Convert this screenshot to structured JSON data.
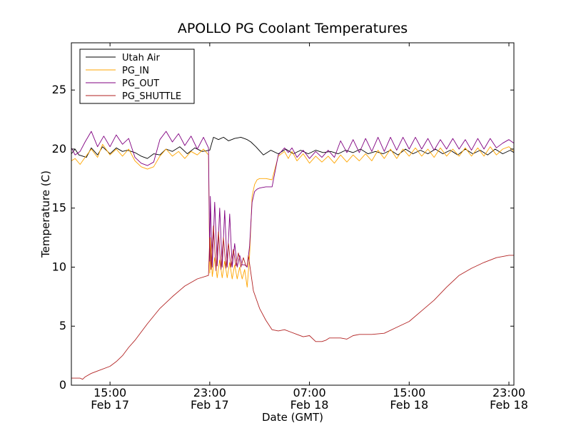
{
  "chart_data": {
    "type": "line",
    "title": "APOLLO PG Coolant Temperatures",
    "xlabel": "Date (GMT)",
    "ylabel": "Temperature (C)",
    "x_unit": "hours since 2013-02-17 00:00 GMT",
    "xlim": [
      11.9,
      47.4
    ],
    "ylim": [
      0,
      29
    ],
    "yticks": [
      0,
      5,
      10,
      15,
      20,
      25
    ],
    "xticks": [
      {
        "x": 15,
        "label_time": "15:00",
        "label_date": "Feb 17"
      },
      {
        "x": 23,
        "label_time": "23:00",
        "label_date": "Feb 17"
      },
      {
        "x": 31,
        "label_time": "07:00",
        "label_date": "Feb 18"
      },
      {
        "x": 39,
        "label_time": "15:00",
        "label_date": "Feb 18"
      },
      {
        "x": 47,
        "label_time": "23:00",
        "label_date": "Feb 18"
      }
    ],
    "legend_position": "top-left",
    "series": [
      {
        "name": "Utah Air",
        "color": "#000000",
        "x": [
          11.9,
          12.2,
          12.5,
          13.1,
          13.5,
          14.0,
          14.4,
          15.0,
          15.5,
          16.0,
          16.4,
          17.0,
          17.5,
          18.0,
          18.5,
          19.0,
          19.5,
          20.0,
          20.6,
          21.2,
          21.8,
          22.4,
          23.0,
          23.3,
          23.7,
          24.1,
          24.5,
          25.0,
          25.5,
          26.0,
          26.3,
          26.7,
          27.3,
          27.9,
          28.5,
          29.1,
          29.7,
          30.3,
          30.9,
          31.5,
          32.1,
          32.7,
          33.3,
          33.9,
          34.5,
          35.1,
          35.7,
          36.3,
          36.9,
          37.5,
          38.1,
          38.7,
          39.3,
          39.9,
          40.5,
          41.1,
          41.7,
          42.3,
          42.9,
          43.5,
          44.1,
          44.7,
          45.3,
          45.9,
          46.5,
          47.1,
          47.4
        ],
        "y": [
          19.6,
          20.0,
          19.5,
          19.3,
          20.1,
          19.5,
          20.2,
          19.6,
          20.1,
          19.8,
          19.9,
          19.7,
          19.4,
          19.2,
          19.6,
          19.5,
          20.0,
          19.8,
          20.2,
          19.6,
          20.1,
          19.8,
          19.9,
          21.0,
          20.8,
          21.0,
          20.7,
          20.9,
          21.0,
          20.8,
          20.6,
          20.2,
          19.5,
          19.9,
          19.6,
          20.0,
          19.6,
          19.9,
          19.6,
          19.9,
          19.7,
          19.8,
          19.6,
          19.9,
          19.7,
          20.0,
          19.6,
          19.8,
          19.6,
          19.9,
          19.5,
          20.0,
          19.6,
          19.9,
          19.6,
          20.0,
          19.6,
          19.9,
          19.5,
          20.0,
          19.6,
          19.9,
          19.5,
          20.0,
          19.6,
          19.9,
          19.7
        ]
      },
      {
        "name": "PG_IN",
        "color": "#ffa500",
        "x": [
          11.9,
          12.2,
          12.6,
          13.0,
          13.5,
          14.0,
          14.4,
          15.0,
          15.5,
          16.0,
          16.5,
          17.0,
          17.5,
          18.0,
          18.5,
          19.0,
          19.5,
          20.0,
          20.5,
          21.0,
          21.5,
          22.0,
          22.5,
          22.9,
          23.0,
          23.05,
          23.2,
          23.4,
          23.6,
          23.8,
          24.0,
          24.2,
          24.4,
          24.6,
          24.8,
          25.0,
          25.2,
          25.4,
          25.6,
          25.8,
          26.0,
          26.2,
          26.4,
          26.6,
          26.8,
          27.0,
          27.5,
          28.0,
          28.5,
          29.0,
          29.3,
          29.6,
          30.0,
          30.5,
          31.0,
          31.5,
          32.0,
          32.5,
          33.0,
          33.5,
          34.0,
          34.5,
          35.0,
          35.5,
          36.0,
          36.5,
          37.0,
          37.5,
          38.0,
          38.5,
          39.0,
          39.5,
          40.0,
          40.5,
          41.0,
          41.5,
          42.0,
          42.5,
          43.0,
          43.5,
          44.0,
          44.5,
          45.0,
          45.5,
          46.0,
          46.5,
          47.0,
          47.4
        ],
        "y": [
          19.0,
          19.2,
          18.7,
          19.3,
          20.0,
          19.3,
          20.4,
          19.5,
          20.0,
          19.4,
          20.0,
          19.0,
          18.5,
          18.3,
          18.5,
          19.4,
          20.0,
          19.4,
          19.8,
          19.2,
          19.8,
          19.5,
          20.0,
          19.5,
          9.5,
          12.5,
          9.2,
          10.8,
          9.1,
          10.6,
          9.1,
          10.5,
          9.1,
          10.4,
          9.0,
          10.2,
          9.0,
          10.0,
          9.0,
          9.8,
          8.3,
          11.0,
          16.0,
          17.0,
          17.4,
          17.5,
          17.5,
          17.4,
          19.4,
          19.8,
          19.2,
          19.8,
          19.0,
          19.6,
          18.8,
          19.4,
          18.9,
          19.4,
          18.8,
          19.5,
          18.9,
          19.5,
          19.0,
          19.6,
          19.0,
          19.9,
          19.2,
          20.0,
          19.2,
          20.0,
          19.4,
          20.1,
          19.4,
          20.0,
          19.3,
          20.1,
          19.4,
          20.0,
          19.4,
          20.1,
          19.4,
          20.1,
          19.4,
          20.2,
          19.5,
          20.0,
          20.2,
          19.8
        ]
      },
      {
        "name": "PG_OUT",
        "color": "#800080",
        "x": [
          11.9,
          12.2,
          12.6,
          13.0,
          13.5,
          14.0,
          14.5,
          15.0,
          15.5,
          16.0,
          16.5,
          17.0,
          17.5,
          18.0,
          18.5,
          19.0,
          19.5,
          20.0,
          20.5,
          21.0,
          21.5,
          22.0,
          22.5,
          22.9,
          23.0,
          23.05,
          23.2,
          23.4,
          23.6,
          23.8,
          24.0,
          24.2,
          24.4,
          24.6,
          24.8,
          25.0,
          25.2,
          25.4,
          25.6,
          25.8,
          26.0,
          26.2,
          26.4,
          26.6,
          26.8,
          27.0,
          27.5,
          28.0,
          28.5,
          29.0,
          29.3,
          29.6,
          30.0,
          30.5,
          31.0,
          31.5,
          32.0,
          32.5,
          33.0,
          33.5,
          34.0,
          34.5,
          35.0,
          35.5,
          36.0,
          36.5,
          37.0,
          37.5,
          38.0,
          38.5,
          39.0,
          39.5,
          40.0,
          40.5,
          41.0,
          41.5,
          42.0,
          42.5,
          43.0,
          43.5,
          44.0,
          44.5,
          45.0,
          45.5,
          46.0,
          46.5,
          47.0,
          47.4
        ],
        "y": [
          20.1,
          19.5,
          19.8,
          20.6,
          21.5,
          20.2,
          21.1,
          20.2,
          21.2,
          20.4,
          20.9,
          19.3,
          18.8,
          18.6,
          18.9,
          20.8,
          21.5,
          20.6,
          21.3,
          20.3,
          21.1,
          20.0,
          21.0,
          20.1,
          10.5,
          16.0,
          10.0,
          15.5,
          10.1,
          15.0,
          10.0,
          14.8,
          10.0,
          14.5,
          10.0,
          12.0,
          10.0,
          11.0,
          10.2,
          10.2,
          10.0,
          11.8,
          15.5,
          16.4,
          16.6,
          16.7,
          16.8,
          16.8,
          19.5,
          20.1,
          19.7,
          20.1,
          19.3,
          19.9,
          19.2,
          19.8,
          19.3,
          19.9,
          19.3,
          20.7,
          19.7,
          20.8,
          19.7,
          20.9,
          19.8,
          21.0,
          19.8,
          21.0,
          19.9,
          21.0,
          20.0,
          21.0,
          20.0,
          20.9,
          19.9,
          20.8,
          20.0,
          20.9,
          20.0,
          20.8,
          19.9,
          20.9,
          20.0,
          20.9,
          20.1,
          20.5,
          20.8,
          20.5
        ]
      },
      {
        "name": "PG_SHUTTLE",
        "color": "#b22222",
        "x": [
          11.9,
          12.6,
          12.8,
          13.0,
          13.5,
          14.0,
          15.0,
          15.5,
          16.0,
          16.5,
          17.0,
          18.0,
          19.0,
          20.0,
          21.0,
          22.0,
          22.9,
          23.0,
          23.1,
          23.3,
          23.5,
          23.7,
          23.9,
          24.1,
          24.3,
          24.5,
          24.7,
          24.9,
          25.1,
          25.3,
          25.5,
          25.7,
          25.9,
          26.0,
          26.1,
          26.3,
          26.5,
          27.0,
          27.5,
          28.0,
          28.5,
          29.0,
          29.5,
          30.0,
          30.5,
          31.0,
          31.5,
          32.0,
          32.3,
          32.6,
          33.0,
          33.5,
          34.0,
          34.5,
          35.0,
          36.0,
          37.0,
          38.0,
          39.0,
          40.0,
          41.0,
          42.0,
          43.0,
          44.0,
          45.0,
          46.0,
          46.5,
          47.0,
          47.4
        ],
        "y": [
          0.6,
          0.6,
          0.5,
          0.7,
          1.0,
          1.2,
          1.6,
          2.0,
          2.5,
          3.2,
          3.8,
          5.2,
          6.5,
          7.5,
          8.4,
          9.0,
          9.3,
          12.5,
          9.8,
          13.5,
          9.7,
          13.0,
          9.8,
          12.5,
          9.9,
          12.0,
          10.0,
          11.5,
          10.1,
          11.2,
          10.0,
          10.8,
          10.1,
          10.1,
          11.0,
          9.5,
          8.0,
          6.5,
          5.5,
          4.7,
          4.6,
          4.7,
          4.5,
          4.3,
          4.1,
          4.2,
          3.7,
          3.7,
          3.8,
          4.0,
          4.0,
          4.0,
          3.9,
          4.2,
          4.3,
          4.3,
          4.4,
          4.9,
          5.4,
          6.3,
          7.2,
          8.3,
          9.3,
          9.9,
          10.4,
          10.8,
          10.9,
          11.0,
          11.0
        ]
      }
    ]
  }
}
